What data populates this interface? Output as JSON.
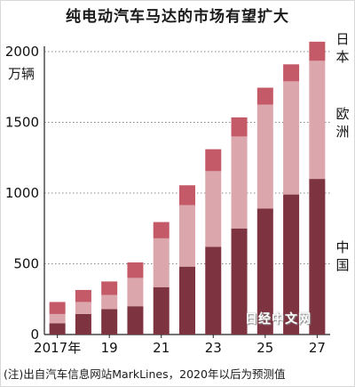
{
  "chart_data": {
    "type": "bar",
    "stacked": true,
    "title": "纯电动汽车马达的市场有望扩大",
    "y_unit_label": "万辆",
    "categories": [
      "2017",
      "2018",
      "2019",
      "2020",
      "2021",
      "2022",
      "2023",
      "2024",
      "2025",
      "2026",
      "2027"
    ],
    "x_tick_labels": [
      "2017年",
      "19",
      "21",
      "23",
      "25",
      "27"
    ],
    "x_tick_categories": [
      "2017",
      "2019",
      "2021",
      "2023",
      "2025",
      "2027"
    ],
    "series": [
      {
        "name": "中国",
        "color": "#7e3341",
        "values": [
          80,
          145,
          180,
          200,
          335,
          480,
          620,
          750,
          890,
          990,
          1100
        ]
      },
      {
        "name": "欧洲",
        "color": "#dba6ac",
        "values": [
          65,
          85,
          100,
          200,
          345,
          435,
          535,
          650,
          735,
          800,
          835
        ]
      },
      {
        "name": "日本",
        "color": "#c45a68",
        "values": [
          85,
          85,
          95,
          110,
          115,
          140,
          155,
          135,
          120,
          120,
          135
        ]
      }
    ],
    "region_labels": {
      "japan": "日本",
      "europe": "欧洲",
      "china": "中国"
    },
    "ylim": [
      0,
      2000
    ],
    "y_ticks": [
      0,
      500,
      1000,
      1500,
      2000
    ],
    "grid": "dotted horizontal"
  },
  "note": "(注)出自汽车信息网站MarkLines，2020年以后为预测值",
  "watermark": "日经中文网"
}
